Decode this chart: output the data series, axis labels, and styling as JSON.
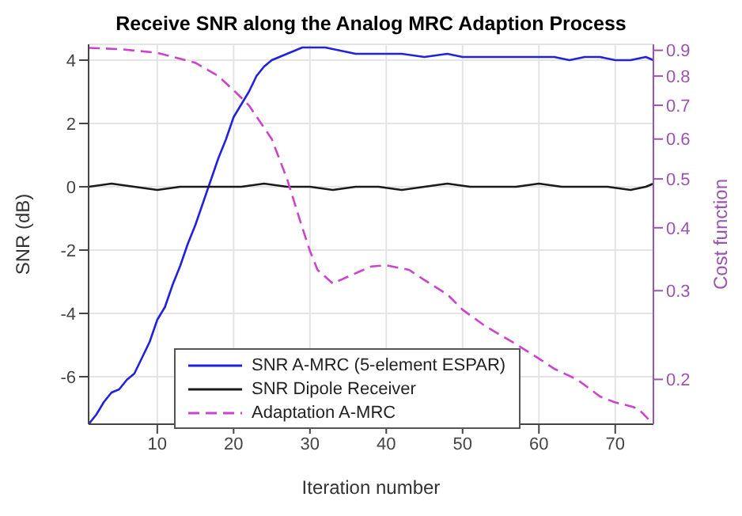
{
  "chart_data": {
    "type": "line",
    "title": "Receive SNR along the Analog MRC Adaption Process",
    "xlabel": "Iteration number",
    "ylabel": "SNR (dB)",
    "y2label": "Cost function",
    "xlim": [
      1,
      75
    ],
    "xticks": [
      10,
      20,
      30,
      40,
      50,
      60,
      70
    ],
    "ylim": [
      -7.5,
      4.5
    ],
    "yticks": [
      -6,
      -4,
      -2,
      0,
      2,
      4
    ],
    "y2lim": [
      0.163,
      0.925
    ],
    "y2ticks": [
      0.2,
      0.3,
      0.4,
      0.5,
      0.6,
      0.7,
      0.8,
      0.9
    ],
    "log": "y2",
    "grid": true,
    "legend": "bottom left",
    "marker": "none",
    "series": [
      {
        "name": "SNR A-MRC (5-element ESPAR)",
        "color": "#2222dd",
        "line_style": "solid",
        "x": [
          1,
          2,
          3,
          4,
          5,
          6,
          7,
          8,
          9,
          10,
          11,
          12,
          13,
          14,
          15,
          16,
          17,
          18,
          19,
          20,
          21,
          22,
          23,
          24,
          25,
          26,
          27,
          28,
          29,
          30,
          32,
          34,
          36,
          38,
          40,
          42,
          45,
          48,
          50,
          52,
          55,
          58,
          60,
          62,
          64,
          66,
          68,
          70,
          72,
          74,
          75
        ],
        "values": [
          -7.5,
          -7.2,
          -6.8,
          -6.5,
          -6.4,
          -6.1,
          -5.9,
          -5.4,
          -4.9,
          -4.2,
          -3.8,
          -3.1,
          -2.5,
          -1.8,
          -1.2,
          -0.5,
          0.2,
          0.9,
          1.5,
          2.2,
          2.6,
          3.0,
          3.5,
          3.8,
          4.0,
          4.1,
          4.2,
          4.3,
          4.4,
          4.4,
          4.4,
          4.3,
          4.2,
          4.2,
          4.2,
          4.2,
          4.1,
          4.2,
          4.1,
          4.1,
          4.1,
          4.1,
          4.1,
          4.1,
          4.0,
          4.1,
          4.1,
          4.0,
          4.0,
          4.1,
          4.0
        ]
      },
      {
        "name": "SNR Dipole Receiver",
        "color": "#1a1a1a",
        "line_style": "solid",
        "x": [
          1,
          4,
          7,
          10,
          13,
          16,
          18,
          21,
          24,
          27,
          30,
          33,
          36,
          39,
          42,
          45,
          48,
          51,
          54,
          57,
          60,
          63,
          66,
          69,
          72,
          74,
          75
        ],
        "values": [
          0.0,
          0.1,
          0.0,
          -0.1,
          0.0,
          0.0,
          0.0,
          0.0,
          0.1,
          0.0,
          0.0,
          -0.1,
          0.0,
          0.0,
          -0.1,
          0.0,
          0.1,
          0.0,
          0.0,
          0.0,
          0.1,
          0.0,
          0.0,
          0.0,
          -0.1,
          0.0,
          0.1
        ]
      },
      {
        "name": "Adaptation A-MRC",
        "color": "#cc44cc",
        "line_style": "dashed",
        "axis": "y2",
        "x": [
          1,
          5,
          10,
          15,
          18,
          20,
          22,
          25,
          27,
          29,
          30,
          31,
          33,
          35,
          38,
          40,
          43,
          45,
          48,
          50,
          53,
          57,
          60,
          62,
          65,
          68,
          70,
          72,
          73,
          75
        ],
        "values": [
          0.91,
          0.905,
          0.89,
          0.85,
          0.8,
          0.75,
          0.7,
          0.6,
          0.5,
          0.4,
          0.36,
          0.33,
          0.31,
          0.32,
          0.335,
          0.337,
          0.33,
          0.315,
          0.295,
          0.275,
          0.255,
          0.235,
          0.22,
          0.21,
          0.2,
          0.185,
          0.18,
          0.177,
          0.175,
          0.163
        ]
      }
    ]
  }
}
